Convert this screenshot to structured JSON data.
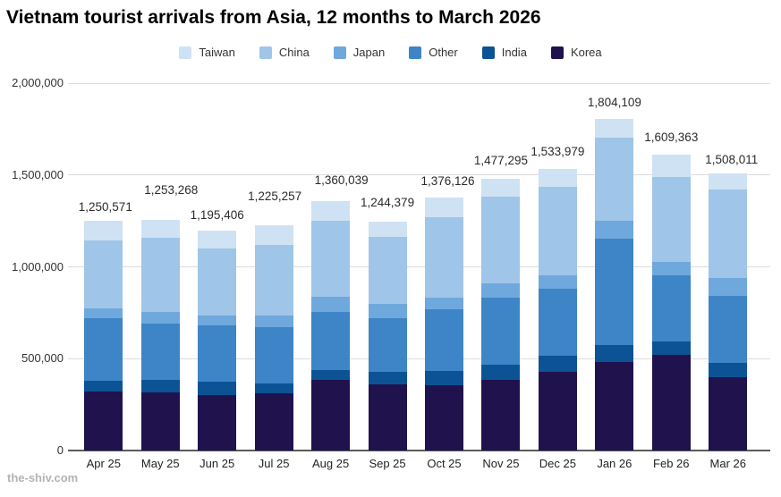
{
  "watermark": "the-shiv.com",
  "chart_data": {
    "type": "bar",
    "stacked": true,
    "title": "Vietnam tourist arrivals from Asia, 12 months to March 2026",
    "categories": [
      "Apr 25",
      "May 25",
      "Jun 25",
      "Jul 25",
      "Aug 25",
      "Sep 25",
      "Oct 25",
      "Nov 25",
      "Dec 25",
      "Jan 26",
      "Feb 26",
      "Mar 26"
    ],
    "series": [
      {
        "name": "Taiwan",
        "color": "#cfe2f3",
        "values": [
          105571,
          93268,
          96406,
          108257,
          109039,
          83379,
          108126,
          97295,
          97979,
          102109,
          118363,
          87011
        ]
      },
      {
        "name": "China",
        "color": "#9fc5e8",
        "values": [
          370000,
          405000,
          365000,
          382000,
          413000,
          362000,
          434000,
          472000,
          480000,
          452000,
          466000,
          483000
        ]
      },
      {
        "name": "Japan",
        "color": "#6fa8dc",
        "values": [
          55000,
          65000,
          53000,
          62000,
          83000,
          78000,
          66000,
          77000,
          77000,
          95000,
          73000,
          98000
        ]
      },
      {
        "name": "Other",
        "color": "#3d85c6",
        "values": [
          340000,
          305000,
          308000,
          307000,
          317000,
          294000,
          336000,
          366000,
          363000,
          582000,
          357000,
          361000
        ]
      },
      {
        "name": "India",
        "color": "#0b5394",
        "values": [
          60000,
          70000,
          73000,
          54000,
          56000,
          65000,
          78000,
          81000,
          90000,
          90000,
          73000,
          82000
        ]
      },
      {
        "name": "Korea",
        "color": "#20124d",
        "values": [
          320000,
          315000,
          300000,
          312000,
          382000,
          362000,
          354000,
          384000,
          426000,
          483000,
          522000,
          397000
        ]
      }
    ],
    "stack_order_bottom_to_top": [
      "Korea",
      "India",
      "Other",
      "Japan",
      "China",
      "Taiwan"
    ],
    "totals": [
      1250571,
      1253268,
      1195406,
      1225257,
      1360039,
      1244379,
      1376126,
      1477295,
      1533979,
      1804109,
      1609363,
      1508011
    ],
    "total_labels": [
      "1,250,571",
      "1,253,268",
      "1,195,406",
      "1,225,257",
      "1,360,039",
      "1,244,379",
      "1,376,126",
      "1,477,295",
      "1,533,979",
      "1,804,109",
      "1,609,363",
      "1,508,011"
    ],
    "y_ticks": [
      {
        "value": 0,
        "label": "0"
      },
      {
        "value": 500000,
        "label": "500,000"
      },
      {
        "value": 1000000,
        "label": "1,000,000"
      },
      {
        "value": 1500000,
        "label": "1,500,000"
      },
      {
        "value": 2000000,
        "label": "2,000,000"
      }
    ],
    "ylim": [
      0,
      2000000
    ],
    "grid": true,
    "legend_position": "top"
  }
}
